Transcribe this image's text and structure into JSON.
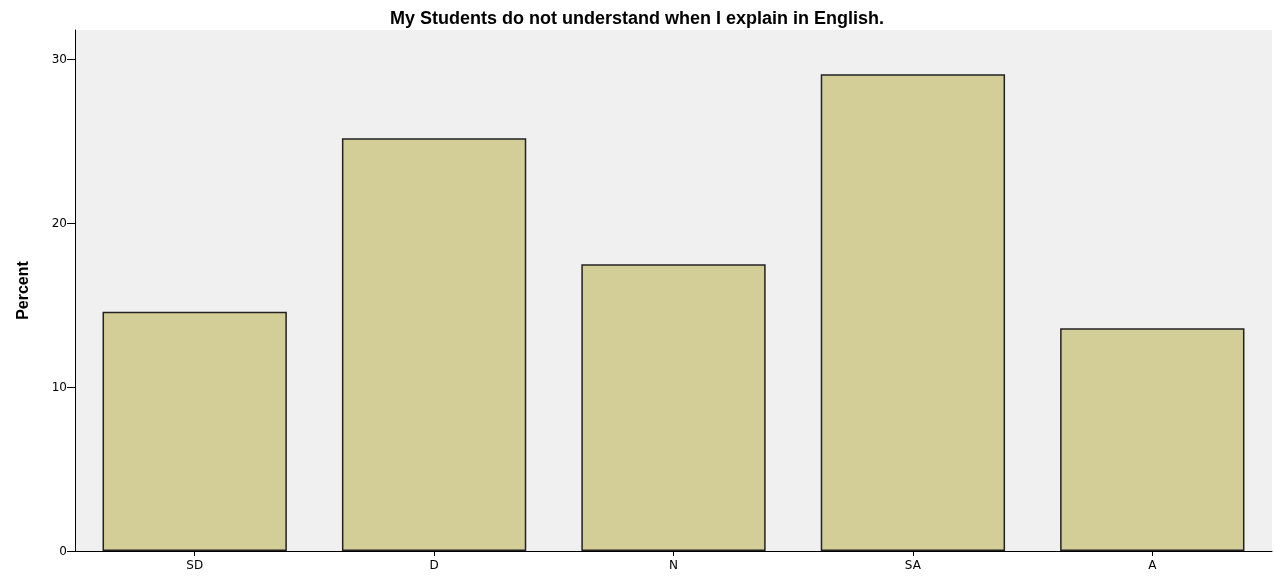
{
  "chart_data": {
    "type": "bar",
    "title": "My Students do not understand when I explain in English.",
    "ylabel": "Percent",
    "categories": [
      "SD",
      "D",
      "N",
      "SA",
      "A"
    ],
    "values": [
      14.6,
      25.2,
      17.5,
      29.1,
      13.6
    ],
    "color": "#d3ce97",
    "ylim": [
      0,
      31.8
    ],
    "yticks": [
      0,
      10,
      20,
      30
    ],
    "grid": false
  }
}
